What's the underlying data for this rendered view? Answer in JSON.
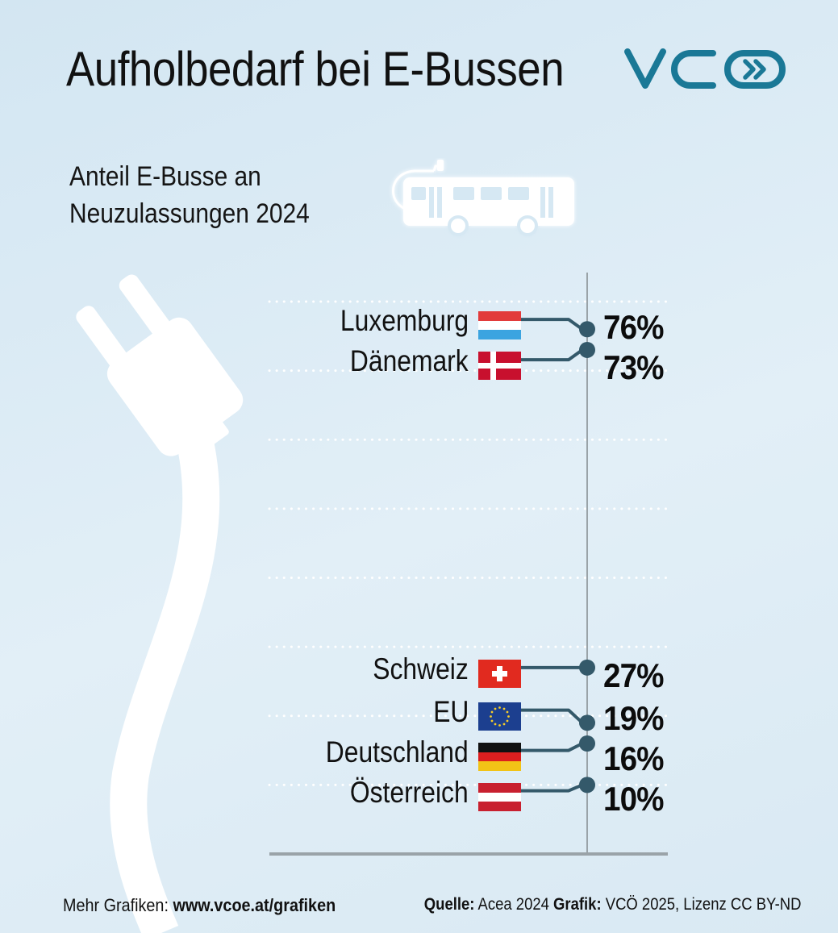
{
  "brand": {
    "logo_text": "VCÖ",
    "color": "#1a7896"
  },
  "header": {
    "title": "Aufholbedarf bei E-Bussen",
    "subtitle_line1": "Anteil E-Busse an",
    "subtitle_line2": "Neuzulassungen 2024"
  },
  "icons": [
    "electric-bus-icon",
    "plug-icon"
  ],
  "chart_data": {
    "type": "scatter",
    "orientation": "values-spread-vertically",
    "title": "Aufholbedarf bei E-Bussen",
    "subtitle": "Anteil E-Busse an Neuzulassungen 2024",
    "unit": "%",
    "ylim": [
      0,
      80
    ],
    "series": [
      {
        "points": [
          {
            "label": "Luxemburg",
            "value": 76,
            "display": "76%",
            "flag": "luxembourg"
          },
          {
            "label": "Dänemark",
            "value": 73,
            "display": "73%",
            "flag": "denmark"
          },
          {
            "label": "Schweiz",
            "value": 27,
            "display": "27%",
            "flag": "switzerland"
          },
          {
            "label": "EU",
            "value": 19,
            "display": "19%",
            "flag": "eu"
          },
          {
            "label": "Deutschland",
            "value": 16,
            "display": "16%",
            "flag": "germany"
          },
          {
            "label": "Österreich",
            "value": 10,
            "display": "10%",
            "flag": "austria"
          }
        ]
      }
    ],
    "colors": {
      "connector": "#34596a",
      "axis": "#9aa3a8",
      "grid_dots": "#ffffff"
    },
    "grid": true
  },
  "footer": {
    "more_label": "Mehr Grafiken: ",
    "more_link": "www.vcoe.at/grafiken",
    "source_label": "Quelle:",
    "source_value": " Acea 2024 ",
    "graphic_label": "Grafik:",
    "graphic_value": " VCÖ 2025, Lizenz CC BY-ND"
  }
}
